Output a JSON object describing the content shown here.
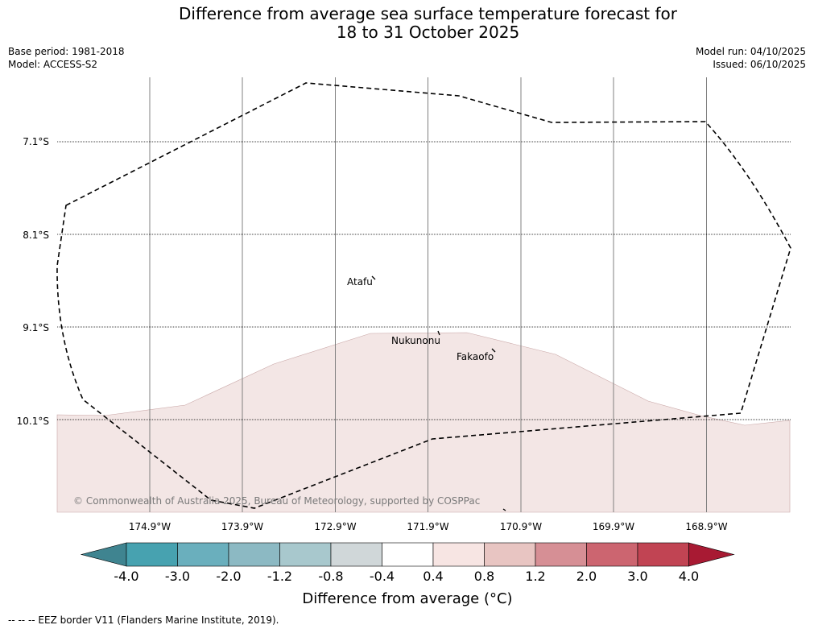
{
  "title_line1": "Difference from average sea surface temperature forecast for",
  "title_line2": "18 to 31 October 2025",
  "meta_left": {
    "base_period": "Base period: 1981-2018",
    "model": "Model: ACCESS-S2"
  },
  "meta_right": {
    "model_run": "Model run: 04/10/2025",
    "issued": "Issued: 06/10/2025"
  },
  "map": {
    "lat_labels": [
      "7.1°S",
      "8.1°S",
      "9.1°S",
      "10.1°S"
    ],
    "lon_labels": [
      "174.9°W",
      "173.9°W",
      "172.9°W",
      "171.9°W",
      "170.9°W",
      "169.9°W",
      "168.9°W"
    ],
    "places": [
      "Atafu",
      "Nukunonu",
      "Fakaofo"
    ],
    "copyright": "© Commonwealth of Australia 2025, Bureau of Meteorology, supported by COSPPac",
    "anomaly_fill_color": "#f3e6e5",
    "eez_line_color": "#000000"
  },
  "colorbar": {
    "ticks": [
      "-4.0",
      "-3.0",
      "-2.0",
      "-1.2",
      "-0.8",
      "-0.4",
      "0.4",
      "0.8",
      "1.2",
      "2.0",
      "3.0",
      "4.0"
    ],
    "colors": [
      "#3f8490",
      "#47a2b0",
      "#6aafbd",
      "#8cb9c3",
      "#a8c8cd",
      "#d0d7d9",
      "#ffffff",
      "#f7e5e3",
      "#e8c5c2",
      "#d68f95",
      "#cc6570",
      "#c14453",
      "#a81a33"
    ],
    "label": "Difference from average (°C)"
  },
  "footer": "--  --  -- EEZ border V11 (Flanders Marine Institute, 2019)."
}
